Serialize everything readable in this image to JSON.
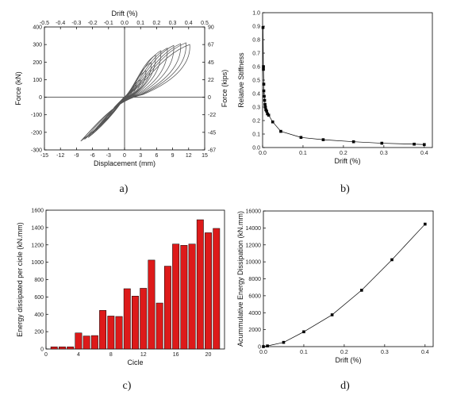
{
  "chart_data": [
    {
      "id": "a",
      "type": "line",
      "panel_label": "a)",
      "xlabel": "Displacement (mm)",
      "ylabel": "Force (kN)",
      "top_xlabel": "Drift (%)",
      "right_ylabel": "Force (kips)",
      "xlim": [
        -15,
        15
      ],
      "ylim": [
        -300,
        400
      ],
      "xticks": [
        "-15",
        "-12",
        "-9",
        "-6",
        "-3",
        "0",
        "3",
        "6",
        "9",
        "12",
        "15"
      ],
      "yticks": [
        "-300",
        "-200",
        "-100",
        "0",
        "100",
        "200",
        "300",
        "400"
      ],
      "top_ticks": [
        "-0.5",
        "-0.4",
        "-0.3",
        "-0.2",
        "-0.1",
        "0.0",
        "0.1",
        "0.2",
        "0.3",
        "0.4",
        "0.5"
      ],
      "right_ticks": [
        "-67",
        "-45",
        "-22",
        "0",
        "22",
        "45",
        "67",
        "90"
      ],
      "series_color": "#555555",
      "loops": [
        {
          "amp_pos": 1.0,
          "amp_neg": -1.0,
          "peak_pos": 30,
          "peak_neg": -30
        },
        {
          "amp_pos": 1.5,
          "amp_neg": -1.5,
          "peak_pos": 45,
          "peak_neg": -45
        },
        {
          "amp_pos": 2.2,
          "amp_neg": -2.0,
          "peak_pos": 70,
          "peak_neg": -60
        },
        {
          "amp_pos": 3.0,
          "amp_neg": -2.5,
          "peak_pos": 100,
          "peak_neg": -80
        },
        {
          "amp_pos": 4.0,
          "amp_neg": -3.2,
          "peak_pos": 150,
          "peak_neg": -110
        },
        {
          "amp_pos": 5.0,
          "amp_neg": -4.0,
          "peak_pos": 200,
          "peak_neg": -140
        },
        {
          "amp_pos": 5.8,
          "amp_neg": -4.8,
          "peak_pos": 240,
          "peak_neg": -170
        },
        {
          "amp_pos": 6.8,
          "amp_neg": -5.5,
          "peak_pos": 265,
          "peak_neg": -195
        },
        {
          "amp_pos": 8.0,
          "amp_neg": -6.2,
          "peak_pos": 280,
          "peak_neg": -215
        },
        {
          "amp_pos": 9.2,
          "amp_neg": -6.8,
          "peak_pos": 295,
          "peak_neg": -230
        },
        {
          "amp_pos": 10.5,
          "amp_neg": -7.5,
          "peak_pos": 305,
          "peak_neg": -240
        },
        {
          "amp_pos": 11.5,
          "amp_neg": -8.0,
          "peak_pos": 310,
          "peak_neg": -245
        },
        {
          "amp_pos": 12.2,
          "amp_neg": -8.2,
          "peak_pos": 300,
          "peak_neg": -250
        }
      ]
    },
    {
      "id": "b",
      "type": "line",
      "panel_label": "b)",
      "xlabel": "Drift (%)",
      "ylabel": "Relative Stiffness",
      "xlim": [
        0,
        0.42
      ],
      "ylim": [
        0,
        1.0
      ],
      "xticks": [
        "0.0",
        "0.1",
        "0.2",
        "0.3",
        "0.4"
      ],
      "yticks": [
        "0.0",
        "0.1",
        "0.2",
        "0.3",
        "0.4",
        "0.5",
        "0.6",
        "0.7",
        "0.8",
        "0.9",
        "1.0"
      ],
      "series_color": "#000000",
      "x": [
        0.001,
        0.002,
        0.002,
        0.003,
        0.003,
        0.004,
        0.005,
        0.006,
        0.007,
        0.008,
        0.01,
        0.012,
        0.015,
        0.025,
        0.045,
        0.095,
        0.15,
        0.225,
        0.295,
        0.375,
        0.4
      ],
      "y": [
        0.89,
        0.58,
        0.6,
        0.47,
        0.42,
        0.38,
        0.35,
        0.32,
        0.3,
        0.28,
        0.27,
        0.25,
        0.24,
        0.19,
        0.12,
        0.075,
        0.058,
        0.043,
        0.032,
        0.025,
        0.022
      ]
    },
    {
      "id": "c",
      "type": "bar",
      "panel_label": "c)",
      "xlabel": "Cicle",
      "ylabel": "Energy dissipated per cicle (kN.mm)",
      "xlim": [
        0,
        22
      ],
      "ylim": [
        0,
        1600
      ],
      "xticks": [
        "0",
        "4",
        "8",
        "12",
        "16",
        "20"
      ],
      "yticks": [
        "0",
        "200",
        "400",
        "600",
        "800",
        "1000",
        "1200",
        "1400",
        "1600"
      ],
      "bar_color": "#dd1a1a",
      "categories": [
        "1",
        "2",
        "3",
        "4",
        "5",
        "6",
        "7",
        "8",
        "9",
        "10",
        "11",
        "12",
        "13",
        "14",
        "15",
        "16",
        "17",
        "18",
        "19",
        "20",
        "21"
      ],
      "values": [
        25,
        25,
        25,
        185,
        150,
        155,
        445,
        380,
        375,
        695,
        610,
        700,
        1025,
        530,
        955,
        1210,
        1195,
        1210,
        1490,
        1340,
        1390
      ]
    },
    {
      "id": "d",
      "type": "line",
      "panel_label": "d)",
      "xlabel": "Drift (%)",
      "ylabel": "Acummulative Energy Dissipation (kN.mm)",
      "xlim": [
        0,
        0.42
      ],
      "ylim": [
        0,
        16000
      ],
      "xticks": [
        "0.0",
        "0.1",
        "0.2",
        "0.3",
        "0.4"
      ],
      "yticks": [
        "0",
        "2000",
        "4000",
        "6000",
        "8000",
        "10000",
        "12000",
        "14000",
        "16000"
      ],
      "series_color": "#000000",
      "x": [
        0.0,
        0.01,
        0.05,
        0.1,
        0.17,
        0.243,
        0.318,
        0.4
      ],
      "y": [
        0,
        80,
        500,
        1750,
        3750,
        6650,
        10250,
        14450
      ]
    }
  ]
}
